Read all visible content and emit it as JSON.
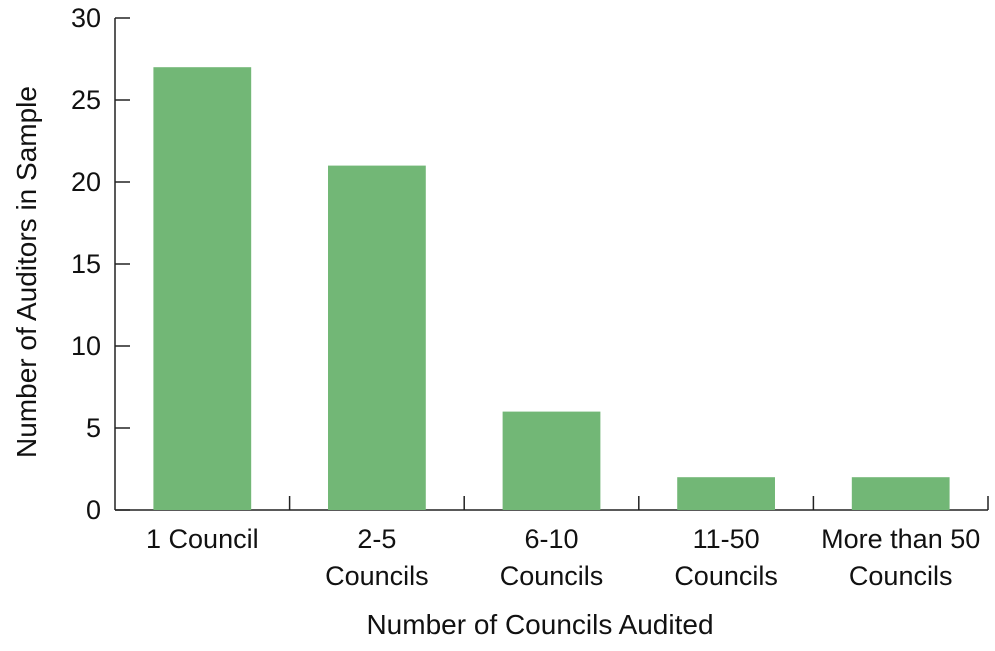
{
  "chart_data": {
    "type": "bar",
    "categories": [
      [
        "1 Council"
      ],
      [
        "2-5",
        "Councils"
      ],
      [
        "6-10",
        "Councils"
      ],
      [
        "11-50",
        "Councils"
      ],
      [
        "More than 50",
        "Councils"
      ]
    ],
    "values": [
      27,
      21,
      6,
      2,
      2
    ],
    "xlabel": "Number of Councils Audited",
    "ylabel": "Number of Auditors in Sample",
    "ylim": [
      0,
      30
    ],
    "yticks": [
      0,
      5,
      10,
      15,
      20,
      25,
      30
    ],
    "bar_color": "#72b776",
    "grid": false,
    "legend": "none"
  }
}
